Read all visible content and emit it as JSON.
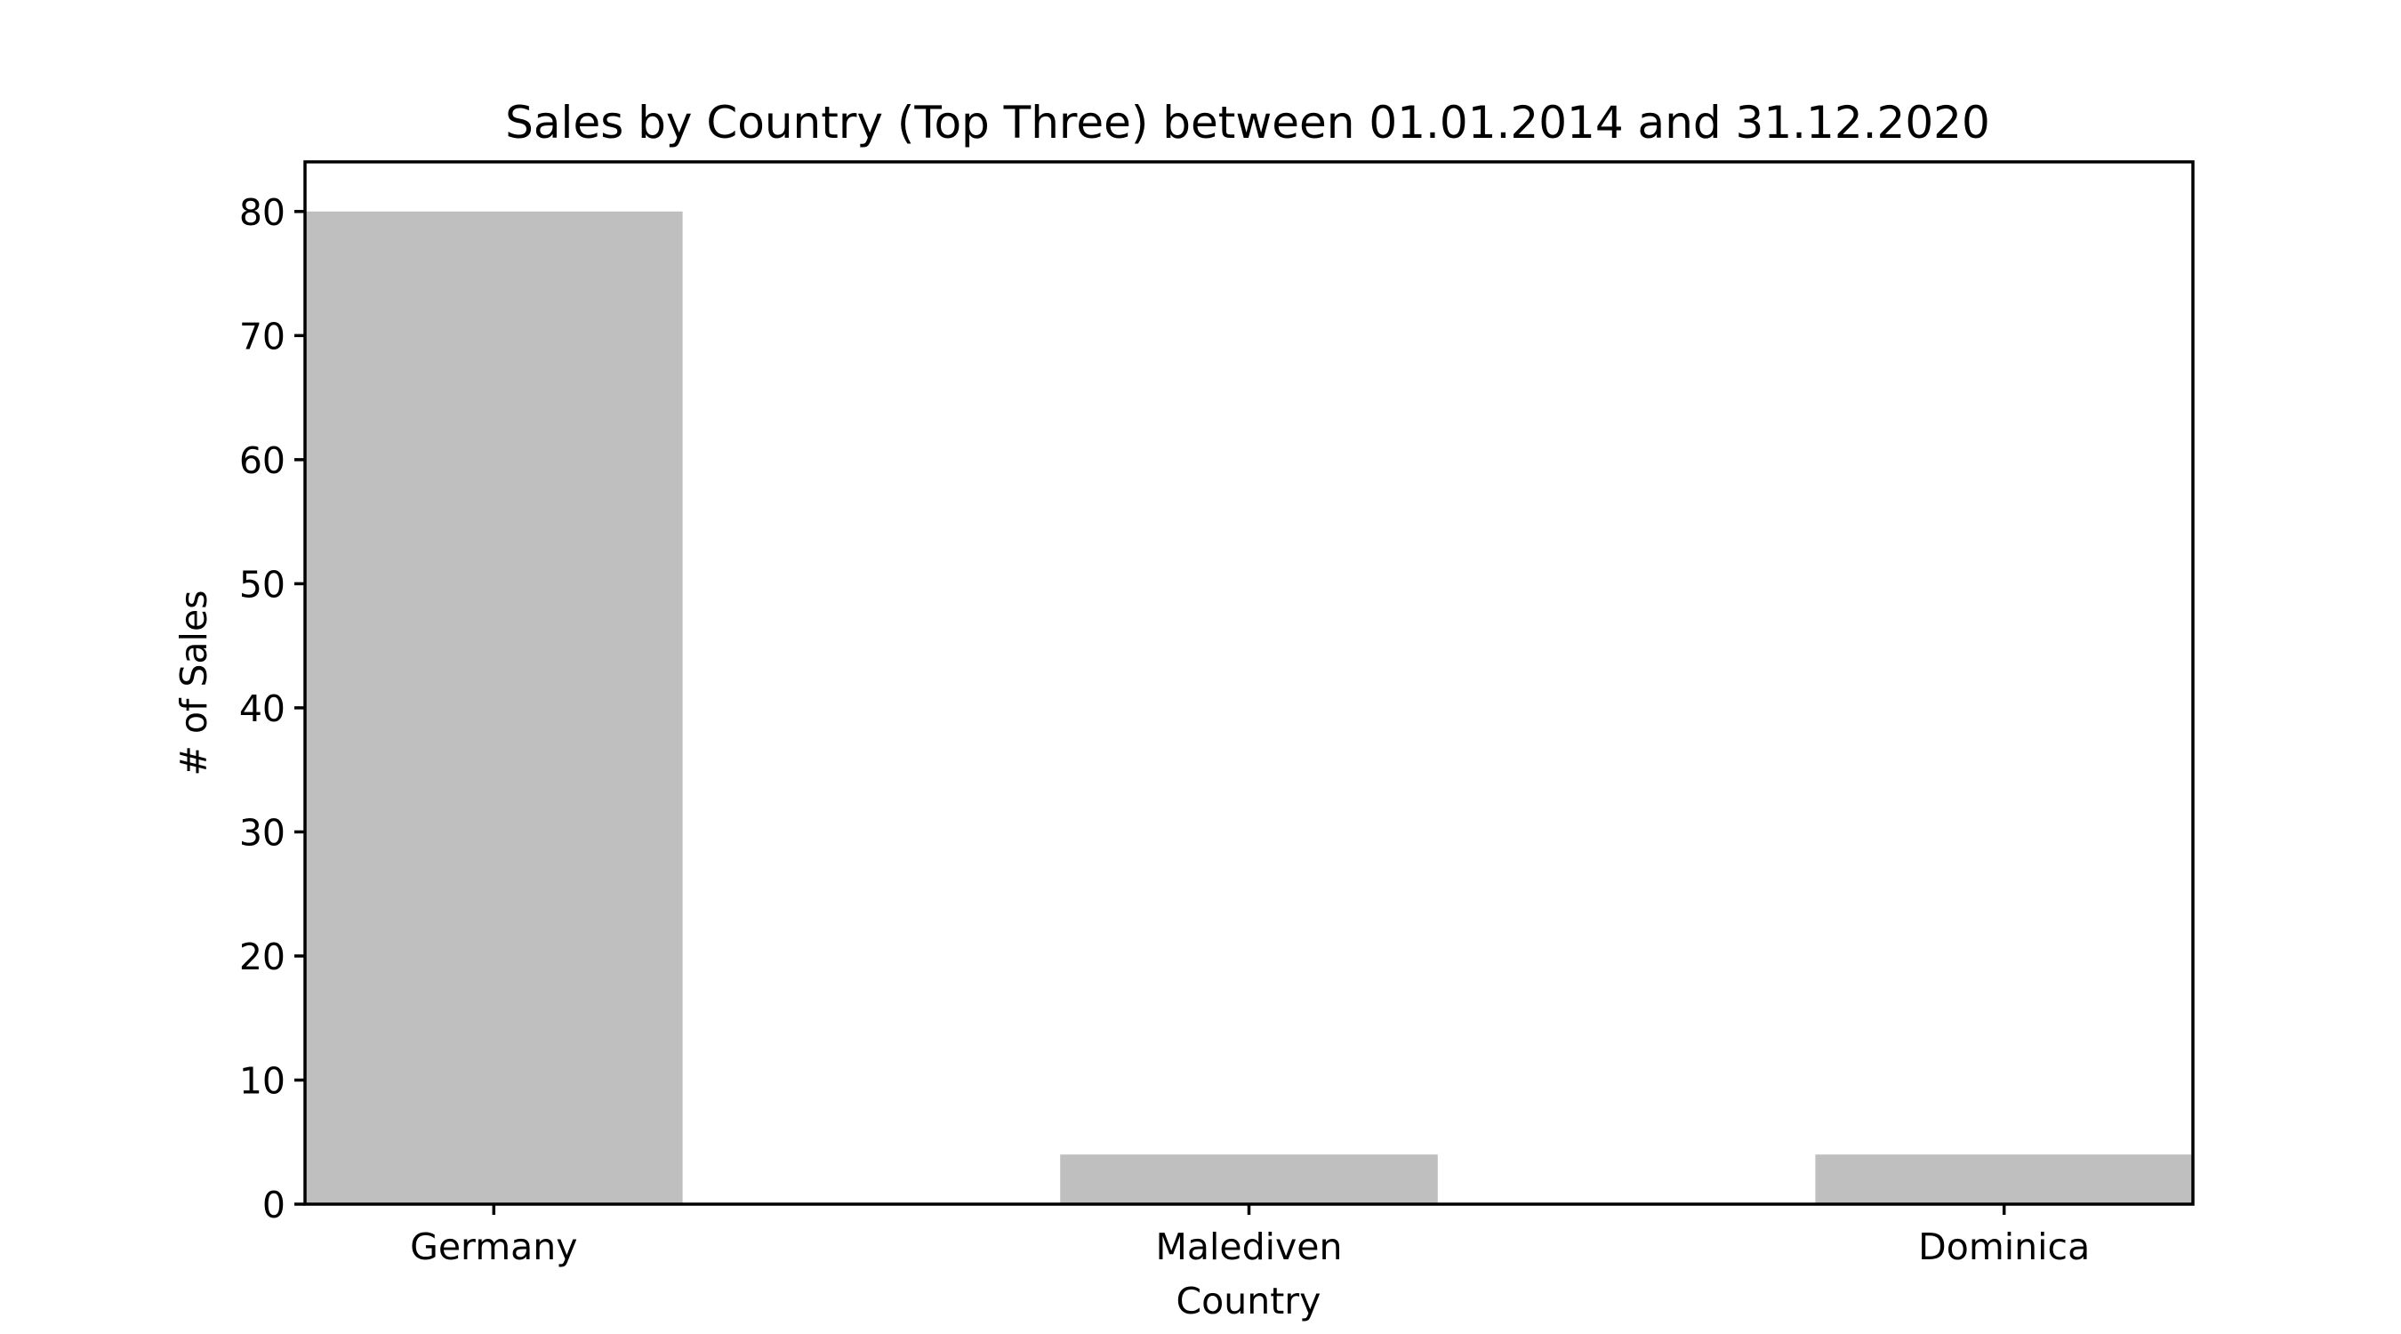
{
  "chart_data": {
    "type": "bar",
    "title": "Sales by Country (Top Three) between 01.01.2014 and 31.12.2020",
    "xlabel": "Country",
    "ylabel": "# of Sales",
    "categories": [
      "Germany",
      "Malediven",
      "Dominica"
    ],
    "values": [
      80,
      4,
      4
    ],
    "ylim": [
      0,
      84
    ],
    "yticks": [
      0,
      10,
      20,
      30,
      40,
      50,
      60,
      70,
      80
    ],
    "grid": false,
    "legend": "none",
    "bar_color": "#bfbfbf",
    "axis_color": "#000000"
  }
}
